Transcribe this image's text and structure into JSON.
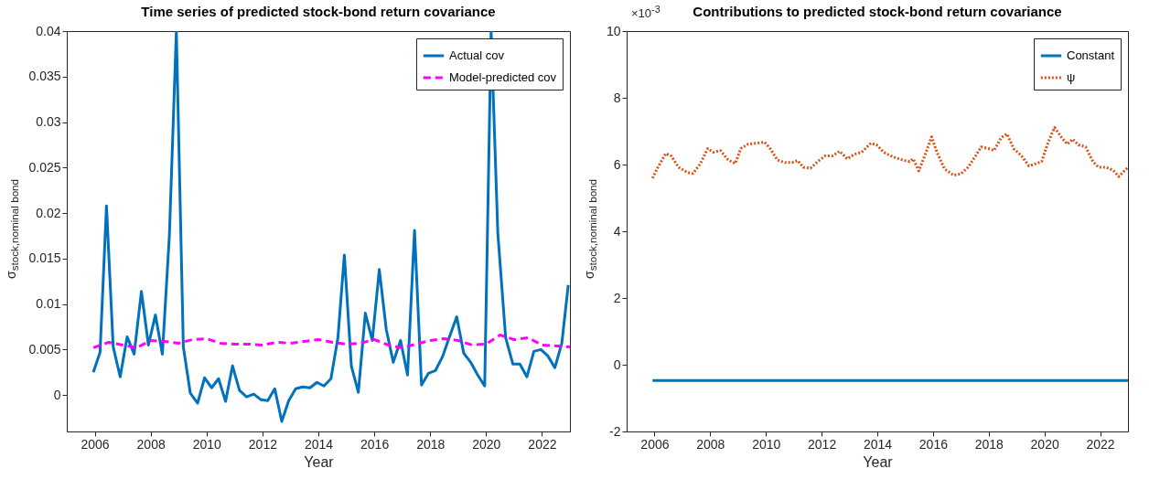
{
  "chart_data": [
    {
      "type": "line",
      "title": "Time series of predicted stock-bond return covariance",
      "xlabel": "Year",
      "ylabel": "σ$_{stock,nominal bond}$",
      "xlim": [
        2005,
        2023
      ],
      "ylim": [
        -0.004,
        0.04
      ],
      "xticks": [
        2006,
        2008,
        2010,
        2012,
        2014,
        2016,
        2018,
        2020,
        2022
      ],
      "yticks": [
        0,
        0.005,
        0.01,
        0.015,
        0.02,
        0.025,
        0.03,
        0.035,
        0.04
      ],
      "legend": "top right",
      "grid": false,
      "series": [
        {
          "name": "Actual cov",
          "color": "#0072bd",
          "line_style": "solid",
          "x": [
            2005.95,
            2006.19,
            2006.42,
            2006.66,
            2006.91,
            2007.16,
            2007.41,
            2007.67,
            2007.92,
            2008.17,
            2008.42,
            2008.67,
            2008.92,
            2009.17,
            2009.42,
            2009.68,
            2009.93,
            2010.18,
            2010.43,
            2010.68,
            2010.93,
            2011.18,
            2011.43,
            2011.69,
            2011.94,
            2012.19,
            2012.44,
            2012.69,
            2012.94,
            2013.19,
            2013.44,
            2013.7,
            2013.95,
            2014.2,
            2014.45,
            2014.7,
            2014.93,
            2015.18,
            2015.43,
            2015.68,
            2015.93,
            2016.18,
            2016.43,
            2016.68,
            2016.94,
            2017.19,
            2017.44,
            2017.69,
            2017.94,
            2018.19,
            2018.44,
            2018.69,
            2018.95,
            2019.2,
            2019.45,
            2019.7,
            2019.95,
            2020.18,
            2020.42,
            2020.7,
            2020.96,
            2021.21,
            2021.46,
            2021.71,
            2021.96,
            2022.21,
            2022.46,
            2022.71,
            2022.94
          ],
          "values": [
            0.0025,
            0.0047,
            0.0208,
            0.0053,
            0.002,
            0.0064,
            0.0045,
            0.0114,
            0.0055,
            0.0088,
            0.0045,
            0.0175,
            0.04,
            0.0053,
            0.0002,
            -0.0009,
            0.0019,
            0.0008,
            0.0018,
            -0.0007,
            0.0032,
            0.0005,
            -0.0002,
            0.0001,
            -0.0005,
            -0.0006,
            0.0007,
            -0.0029,
            -0.0006,
            0.0007,
            0.0009,
            0.0008,
            0.0014,
            0.001,
            0.0018,
            0.0063,
            0.0154,
            0.0032,
            0.0003,
            0.009,
            0.006,
            0.0138,
            0.0072,
            0.0036,
            0.006,
            0.0022,
            0.0181,
            0.0011,
            0.0024,
            0.0027,
            0.0042,
            0.0064,
            0.0086,
            0.0046,
            0.0036,
            0.0022,
            0.001,
            0.04,
            0.0178,
            0.0063,
            0.0034,
            0.0034,
            0.002,
            0.0048,
            0.005,
            0.0043,
            0.003,
            0.0057,
            0.0121
          ]
        },
        {
          "name": "Model-predicted cov",
          "color": "#ff00ff",
          "line_style": "dashed",
          "x": [
            2005.95,
            2006.5,
            2007,
            2007.5,
            2008,
            2008.5,
            2009,
            2009.5,
            2010,
            2010.5,
            2011,
            2011.5,
            2012,
            2012.5,
            2013,
            2013.5,
            2014,
            2014.5,
            2015,
            2015.5,
            2016,
            2016.5,
            2017,
            2017.5,
            2018,
            2018.5,
            2019,
            2019.5,
            2020,
            2020.5,
            2021,
            2021.5,
            2022,
            2022.5,
            2023
          ],
          "values": [
            0.0052,
            0.0058,
            0.0055,
            0.0052,
            0.006,
            0.0059,
            0.0057,
            0.0061,
            0.0062,
            0.0057,
            0.0056,
            0.0056,
            0.0055,
            0.0058,
            0.0057,
            0.0059,
            0.0061,
            0.0058,
            0.0056,
            0.0057,
            0.0061,
            0.0055,
            0.0052,
            0.0056,
            0.006,
            0.0062,
            0.006,
            0.0055,
            0.0056,
            0.0066,
            0.0061,
            0.0063,
            0.0055,
            0.0054,
            0.0053
          ]
        }
      ]
    },
    {
      "type": "line",
      "title": "Contributions to predicted stock-bond return covariance",
      "xlabel": "Year",
      "ylabel": "σ$_{stock,nominal bond}$",
      "annotations": [
        "×10$^{-3}$"
      ],
      "xlim": [
        2005,
        2023
      ],
      "ylim": [
        -2,
        10
      ],
      "xticks": [
        2006,
        2008,
        2010,
        2012,
        2014,
        2016,
        2018,
        2020,
        2022
      ],
      "yticks": [
        -2,
        0,
        2,
        4,
        6,
        8,
        10
      ],
      "legend": "top right",
      "grid": false,
      "series": [
        {
          "name": "Constant",
          "color": "#0072bd",
          "line_style": "solid",
          "x": [
            2005.93,
            2023
          ],
          "values": [
            -0.47,
            -0.47
          ]
        },
        {
          "name": "ψ",
          "color": "#d95319",
          "line_style": "dotted",
          "x": [
            2005.93,
            2006.09,
            2006.4,
            2006.6,
            2006.86,
            2007.19,
            2007.38,
            2007.65,
            2007.91,
            2008.11,
            2008.37,
            2008.64,
            2008.9,
            2009.1,
            2009.36,
            2009.69,
            2009.95,
            2010.15,
            2010.41,
            2010.68,
            2010.94,
            2011.14,
            2011.34,
            2011.6,
            2011.86,
            2012.13,
            2012.39,
            2012.65,
            2012.92,
            2013.18,
            2013.44,
            2013.77,
            2013.97,
            2014.23,
            2014.56,
            2014.89,
            2015.16,
            2015.29,
            2015.49,
            2015.75,
            2015.95,
            2016.14,
            2016.41,
            2016.74,
            2017.0,
            2017.26,
            2017.53,
            2017.73,
            2017.99,
            2018.19,
            2018.45,
            2018.65,
            2018.91,
            2019.18,
            2019.44,
            2019.64,
            2019.9,
            2020.1,
            2020.36,
            2020.62,
            2020.82,
            2021.02,
            2021.22,
            2021.48,
            2021.74,
            2021.94,
            2022.21,
            2022.47,
            2022.67,
            2023.0
          ],
          "values": [
            5.59,
            5.87,
            6.33,
            6.26,
            5.92,
            5.76,
            5.73,
            6.03,
            6.48,
            6.37,
            6.42,
            6.14,
            6.03,
            6.48,
            6.61,
            6.64,
            6.67,
            6.48,
            6.14,
            6.06,
            6.06,
            6.12,
            5.92,
            5.89,
            6.09,
            6.26,
            6.26,
            6.4,
            6.17,
            6.31,
            6.37,
            6.64,
            6.59,
            6.37,
            6.23,
            6.14,
            6.09,
            6.17,
            5.81,
            6.37,
            6.83,
            6.37,
            5.87,
            5.68,
            5.72,
            5.92,
            6.26,
            6.53,
            6.48,
            6.42,
            6.81,
            6.92,
            6.46,
            6.26,
            5.96,
            6.01,
            6.09,
            6.59,
            7.11,
            6.81,
            6.61,
            6.76,
            6.59,
            6.53,
            6.09,
            5.92,
            5.92,
            5.83,
            5.64,
            5.92
          ]
        }
      ]
    }
  ]
}
